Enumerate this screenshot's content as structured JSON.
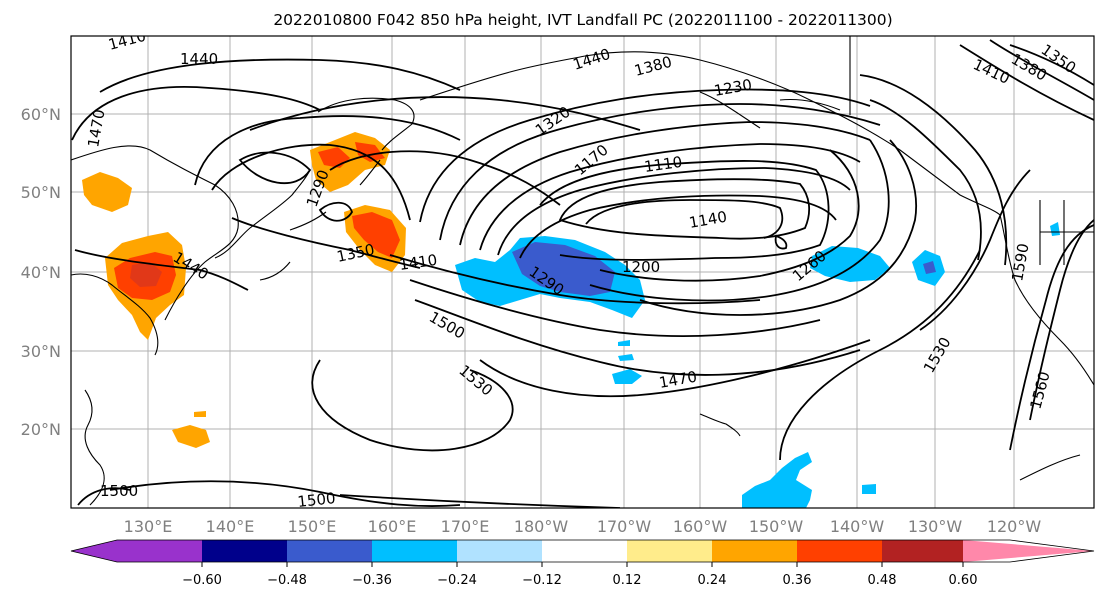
{
  "title": "2022010800 F042 850 hPa height, IVT Landfall PC (2022011100 - 2022011300)",
  "map": {
    "lon_labels": [
      "130°E",
      "140°E",
      "150°E",
      "160°E",
      "170°E",
      "180°W",
      "170°W",
      "160°W",
      "150°W",
      "140°W",
      "130°W",
      "120°W"
    ],
    "lat_labels": [
      "60°N",
      "50°N",
      "40°N",
      "30°N",
      "20°N"
    ],
    "contour_labels": [
      "1410",
      "1440",
      "1470",
      "1290",
      "1350",
      "1410",
      "1440",
      "1320",
      "1380",
      "1440",
      "1230",
      "1170",
      "1110",
      "1140",
      "1200",
      "1290",
      "1260",
      "1500",
      "1530",
      "1470",
      "1530",
      "1560",
      "1500",
      "1500",
      "1410",
      "1380",
      "1350",
      "1590"
    ]
  },
  "colorbar": {
    "colors": [
      "#9932cc",
      "#00008b",
      "#3a5bcd",
      "#00bfff",
      "#b0e2ff",
      "#ffffff",
      "#ffec8b",
      "#ffa500",
      "#ff4000",
      "#b22222",
      "#ff88aa"
    ],
    "tick_labels": [
      "−0.60",
      "−0.48",
      "−0.36",
      "−0.24",
      "−0.12",
      "0.12",
      "0.24",
      "0.36",
      "0.48",
      "0.60"
    ]
  }
}
